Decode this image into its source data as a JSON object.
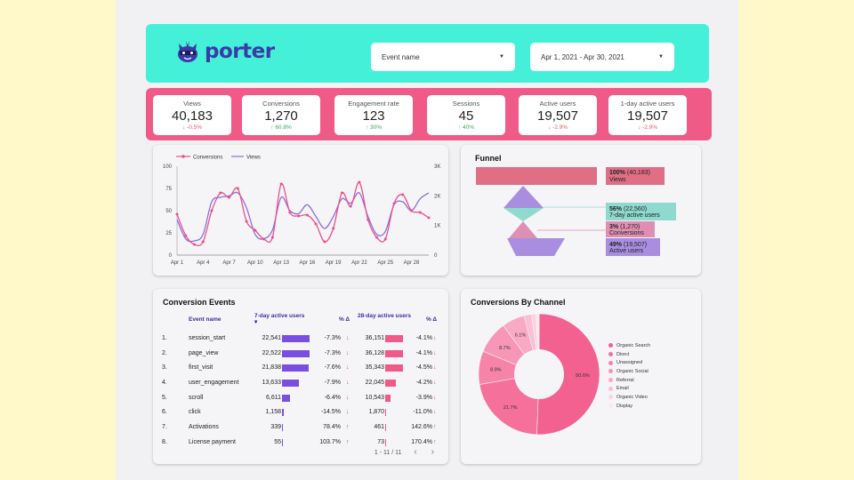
{
  "brand": {
    "name": "porter"
  },
  "filters": {
    "event": {
      "label": "Event name"
    },
    "date": {
      "label": "Apr 1, 2021 - Apr 30, 2021"
    }
  },
  "kpis": [
    {
      "label": "Views",
      "value": "40,183",
      "delta": "-0.5%",
      "dir": "down"
    },
    {
      "label": "Conversions",
      "value": "1,270",
      "delta": "60.8%",
      "dir": "up"
    },
    {
      "label": "Engagement rate",
      "value": "123",
      "delta": "30%",
      "dir": "up"
    },
    {
      "label": "Sessions",
      "value": "45",
      "delta": "40%",
      "dir": "up"
    },
    {
      "label": "Active users",
      "value": "19,507",
      "delta": "-2.9%",
      "dir": "down"
    },
    {
      "label": "1-day active users",
      "value": "19,507",
      "delta": "-2.9%",
      "dir": "down"
    }
  ],
  "trend": {
    "legend": [
      "Conversions",
      "Views"
    ],
    "colors": {
      "conversions": "#e8528a",
      "views": "#8b6fe0"
    },
    "left_ticks": [
      "100",
      "75",
      "50",
      "25",
      "0"
    ],
    "right_ticks": [
      "3K",
      "2K",
      "1K",
      "0"
    ],
    "x_labels": [
      "Apr 1",
      "Apr 4",
      "Apr 7",
      "Apr 10",
      "Apr 13",
      "Apr 16",
      "Apr 19",
      "Apr 22",
      "Apr 25",
      "Apr 28"
    ]
  },
  "chart_data": [
    {
      "type": "line",
      "x": [
        "Apr 1",
        "Apr 2",
        "Apr 3",
        "Apr 4",
        "Apr 5",
        "Apr 6",
        "Apr 7",
        "Apr 8",
        "Apr 9",
        "Apr 10",
        "Apr 11",
        "Apr 12",
        "Apr 13",
        "Apr 14",
        "Apr 15",
        "Apr 16",
        "Apr 17",
        "Apr 18",
        "Apr 19",
        "Apr 20",
        "Apr 21",
        "Apr 22",
        "Apr 23",
        "Apr 24",
        "Apr 25",
        "Apr 26",
        "Apr 27",
        "Apr 28",
        "Apr 29",
        "Apr 30"
      ],
      "series": [
        {
          "name": "Conversions",
          "axis": "left",
          "values": [
            46,
            22,
            12,
            15,
            50,
            70,
            65,
            75,
            38,
            28,
            18,
            20,
            80,
            48,
            44,
            45,
            35,
            15,
            30,
            70,
            55,
            82,
            40,
            20,
            18,
            58,
            68,
            50,
            48,
            42
          ]
        },
        {
          "name": "Views",
          "axis": "right",
          "values": [
            1200,
            550,
            480,
            700,
            1800,
            1950,
            2000,
            2100,
            1600,
            700,
            550,
            850,
            1950,
            1500,
            1400,
            1700,
            1300,
            900,
            1300,
            1900,
            1750,
            2100,
            1300,
            700,
            800,
            1700,
            1800,
            1500,
            1900,
            2100
          ]
        }
      ],
      "ylim": [
        0,
        100
      ],
      "y2lim": [
        0,
        3000
      ]
    },
    {
      "type": "pie",
      "title": "Conversions By Channel",
      "categories": [
        "Organic Search",
        "Direct",
        "Unassigned",
        "Organic Social",
        "Referral",
        "Email",
        "Organic Video",
        "Display"
      ],
      "values": [
        50.6,
        21.7,
        8.9,
        8.7,
        6.1,
        2,
        1.2,
        0.8
      ],
      "slice_labels": [
        "50.6%",
        "21.7%",
        "8.9%",
        "8.7%",
        "6.1%",
        "",
        "",
        ""
      ],
      "colors": [
        "#f2618f",
        "#f5709a",
        "#f683a8",
        "#f796b6",
        "#f9a9c4",
        "#fbbed2",
        "#fcd2e0",
        "#fee5ee"
      ],
      "legend": "right"
    }
  ],
  "funnel": {
    "title": "Funnel",
    "steps": [
      {
        "pct": "100%",
        "count": "(40,183)",
        "label": "Views",
        "color": "#e06f86"
      },
      {
        "pct": "56%",
        "count": "(22,560)",
        "label": "7-day active users",
        "color": "#8fd9cf"
      },
      {
        "pct": "3%",
        "count": "(1,270)",
        "label": "Conversions",
        "color": "#df8fb3"
      },
      {
        "pct": "49%",
        "count": "(19,507)",
        "label": "Active users",
        "color": "#a98ee0"
      }
    ]
  },
  "events": {
    "title": "Conversion Events",
    "headers": {
      "name": "Event name",
      "d7": "7-day active users",
      "pct1": "% Δ",
      "d28": "28-day active users",
      "pct2": "% Δ"
    },
    "rows": [
      {
        "n": "1.",
        "name": "session_start",
        "d7": "22,541",
        "w7": 1.0,
        "p1": "-7.3%",
        "dir1": "down",
        "d28": "36,151",
        "w28": 1.0,
        "p2": "-4.1%",
        "dir2": "down"
      },
      {
        "n": "2.",
        "name": "page_view",
        "d7": "22,522",
        "w7": 0.999,
        "p1": "-7.3%",
        "dir1": "down",
        "d28": "36,128",
        "w28": 0.999,
        "p2": "-4.1%",
        "dir2": "down"
      },
      {
        "n": "3.",
        "name": "first_visit",
        "d7": "21,838",
        "w7": 0.969,
        "p1": "-7.6%",
        "dir1": "down",
        "d28": "35,343",
        "w28": 0.978,
        "p2": "-4.5%",
        "dir2": "down"
      },
      {
        "n": "4.",
        "name": "user_engagement",
        "d7": "13,633",
        "w7": 0.605,
        "p1": "-7.9%",
        "dir1": "down",
        "d28": "22,045",
        "w28": 0.61,
        "p2": "-4.2%",
        "dir2": "down"
      },
      {
        "n": "5.",
        "name": "scroll",
        "d7": "6,611",
        "w7": 0.293,
        "p1": "-6.4%",
        "dir1": "down",
        "d28": "10,543",
        "w28": 0.292,
        "p2": "-3.9%",
        "dir2": "down"
      },
      {
        "n": "6.",
        "name": "click",
        "d7": "1,158",
        "w7": 0.051,
        "p1": "-14.5%",
        "dir1": "down",
        "d28": "1,870",
        "w28": 0.052,
        "p2": "-11.0%",
        "dir2": "down"
      },
      {
        "n": "7.",
        "name": "Activations",
        "d7": "339",
        "w7": 0.015,
        "p1": "78.4%",
        "dir1": "up",
        "d28": "461",
        "w28": 0.013,
        "p2": "142.6%",
        "dir2": "up"
      },
      {
        "n": "8.",
        "name": "License payment",
        "d7": "55",
        "w7": 0.0025,
        "p1": "103.7%",
        "dir1": "up",
        "d28": "73",
        "w28": 0.002,
        "p2": "170.4%",
        "dir2": "up"
      }
    ],
    "pager": "1 - 11 / 11",
    "bar_colors": {
      "d7": "#7a4fe0",
      "d28": "#f05a86"
    }
  },
  "channels": {
    "title": "Conversions By Channel"
  }
}
